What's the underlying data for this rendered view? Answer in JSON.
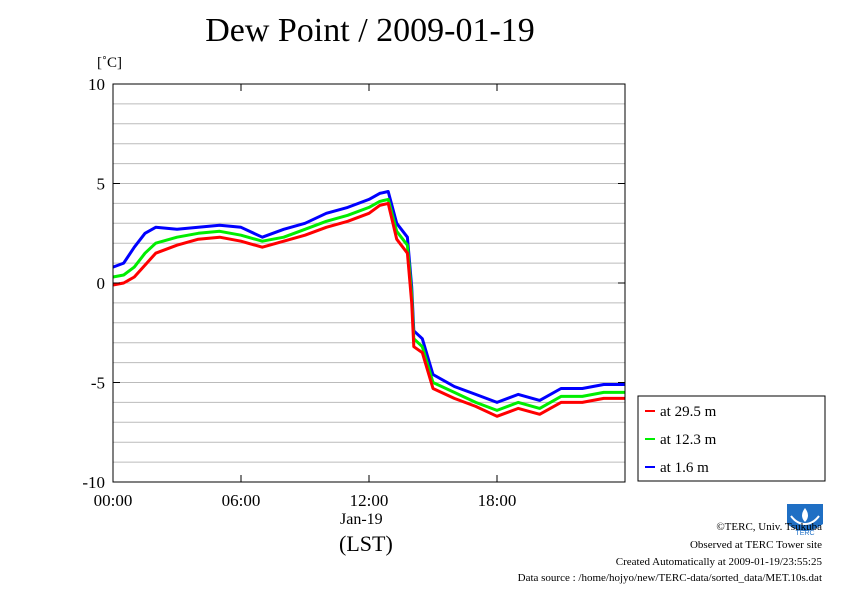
{
  "title": "Dew Point / 2009-01-19",
  "y_unit": "[˚C]",
  "x_date_label": "Jan-19",
  "x_tz_label": "(LST)",
  "credits": {
    "copyright": "©TERC, Univ. Tsukuba",
    "site": "Observed at TERC Tower site",
    "created": "Created Automatically at 2009-01-19/23:55:25",
    "source": "Data source : /home/hojyo/new/TERC-data/sorted_data/MET.10s.dat"
  },
  "logo_text": "TERC",
  "colors": {
    "series_29_5": "#ff0000",
    "series_12_3": "#00ee00",
    "series_1_6": "#0000ff",
    "grid": "#bbbbbb"
  },
  "chart_data": {
    "type": "line",
    "title": "Dew Point / 2009-01-19",
    "ylabel": "[˚C]",
    "xlabel": "(LST)",
    "xlim": [
      0,
      24
    ],
    "ylim": [
      -10,
      10
    ],
    "xticks": [
      0,
      6,
      12,
      18
    ],
    "xtick_labels": [
      "00:00",
      "06:00",
      "12:00",
      "18:00"
    ],
    "yticks": [
      -10,
      -5,
      0,
      5,
      10
    ],
    "ytick_labels": [
      "-10",
      "-5",
      "0",
      "5",
      "10"
    ],
    "grid": true,
    "legend_position": "right",
    "x": [
      0,
      0.5,
      1.0,
      1.5,
      2.0,
      3.0,
      4.0,
      5.0,
      6.0,
      7.0,
      8.0,
      9.0,
      10.0,
      11.0,
      12.0,
      12.5,
      12.9,
      13.3,
      13.8,
      14.0,
      14.1,
      14.5,
      15.0,
      16.0,
      17.0,
      18.0,
      19.0,
      20.0,
      21.0,
      22.0,
      23.0,
      24.0
    ],
    "series": [
      {
        "name": "at 29.5 m",
        "color": "#ff0000",
        "values": [
          -0.1,
          0.0,
          0.3,
          0.9,
          1.5,
          1.9,
          2.2,
          2.3,
          2.1,
          1.8,
          2.1,
          2.4,
          2.8,
          3.1,
          3.5,
          3.9,
          4.0,
          2.2,
          1.5,
          -1.0,
          -3.2,
          -3.5,
          -5.3,
          -5.8,
          -6.2,
          -6.7,
          -6.3,
          -6.6,
          -6.0,
          -6.0,
          -5.8,
          -5.8
        ]
      },
      {
        "name": "at 12.3 m",
        "color": "#00ee00",
        "values": [
          0.3,
          0.4,
          0.8,
          1.5,
          2.0,
          2.3,
          2.5,
          2.6,
          2.4,
          2.1,
          2.3,
          2.7,
          3.1,
          3.4,
          3.8,
          4.1,
          4.2,
          2.6,
          1.9,
          -0.6,
          -2.8,
          -3.2,
          -5.0,
          -5.5,
          -6.0,
          -6.4,
          -6.0,
          -6.3,
          -5.7,
          -5.7,
          -5.5,
          -5.5
        ]
      },
      {
        "name": "at 1.6 m",
        "color": "#0000ff",
        "values": [
          0.8,
          1.0,
          1.8,
          2.5,
          2.8,
          2.7,
          2.8,
          2.9,
          2.8,
          2.3,
          2.7,
          3.0,
          3.5,
          3.8,
          4.2,
          4.5,
          4.6,
          3.0,
          2.3,
          -0.2,
          -2.4,
          -2.8,
          -4.6,
          -5.2,
          -5.6,
          -6.0,
          -5.6,
          -5.9,
          -5.3,
          -5.3,
          -5.1,
          -5.1
        ]
      }
    ]
  }
}
